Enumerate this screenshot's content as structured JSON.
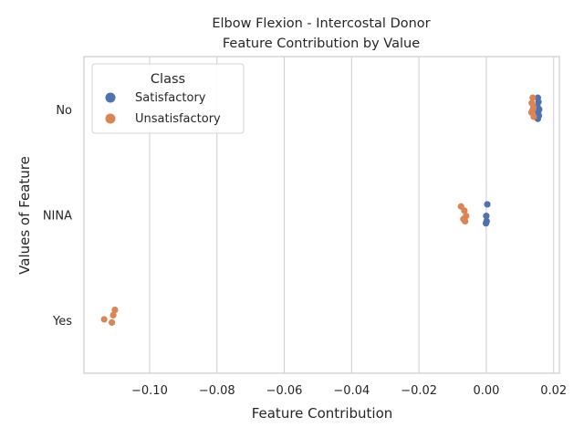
{
  "chart_data": {
    "type": "scatter",
    "title_line1": "Elbow Flexion - Intercostal Donor",
    "title_line2": "Feature Contribution by Value",
    "xlabel": "Feature Contribution",
    "ylabel": "Values of Feature",
    "xlim": [
      -0.1195,
      0.0217
    ],
    "x_ticks": [
      -0.1,
      -0.08,
      -0.06,
      -0.04,
      -0.02,
      0.0,
      0.02
    ],
    "x_tick_labels": [
      "−0.10",
      "−0.08",
      "−0.06",
      "−0.04",
      "−0.02",
      "0.00",
      "0.02"
    ],
    "categories": [
      "No",
      "NINA",
      "Yes"
    ],
    "grid": "vertical",
    "legend": {
      "title": "Class",
      "placement": "top-left",
      "entries": [
        "Satisfactory",
        "Unsatisfactory"
      ]
    },
    "series": [
      {
        "name": "Satisfactory",
        "color": "#4c72b0",
        "points": [
          {
            "category": "No",
            "x": 0.0153,
            "jitter": -0.11
          },
          {
            "category": "No",
            "x": 0.0155,
            "jitter": -0.07
          },
          {
            "category": "No",
            "x": 0.0152,
            "jitter": -0.03
          },
          {
            "category": "No",
            "x": 0.0157,
            "jitter": 0.0
          },
          {
            "category": "No",
            "x": 0.0154,
            "jitter": 0.03
          },
          {
            "category": "No",
            "x": 0.0156,
            "jitter": 0.06
          },
          {
            "category": "No",
            "x": 0.0153,
            "jitter": 0.09
          },
          {
            "category": "NINA",
            "x": 0.0003,
            "jitter": -0.1
          },
          {
            "category": "NINA",
            "x": 0.0,
            "jitter": 0.01
          },
          {
            "category": "NINA",
            "x": 0.0001,
            "jitter": 0.06
          },
          {
            "category": "NINA",
            "x": -0.0001,
            "jitter": 0.08
          }
        ]
      },
      {
        "name": "Unsatisfactory",
        "color": "#dd8452",
        "points": [
          {
            "category": "No",
            "x": 0.0138,
            "jitter": -0.11
          },
          {
            "category": "No",
            "x": 0.0135,
            "jitter": -0.06
          },
          {
            "category": "No",
            "x": 0.014,
            "jitter": -0.02
          },
          {
            "category": "No",
            "x": 0.0137,
            "jitter": 0.01
          },
          {
            "category": "No",
            "x": 0.0134,
            "jitter": 0.03
          },
          {
            "category": "No",
            "x": 0.0141,
            "jitter": 0.07
          },
          {
            "category": "NINA",
            "x": -0.0075,
            "jitter": -0.08
          },
          {
            "category": "NINA",
            "x": -0.0065,
            "jitter": -0.04
          },
          {
            "category": "NINA",
            "x": -0.006,
            "jitter": 0.01
          },
          {
            "category": "NINA",
            "x": -0.0068,
            "jitter": 0.04
          },
          {
            "category": "NINA",
            "x": -0.0063,
            "jitter": 0.06
          },
          {
            "category": "Yes",
            "x": -0.1103,
            "jitter": -0.1
          },
          {
            "category": "Yes",
            "x": -0.1108,
            "jitter": -0.05
          },
          {
            "category": "Yes",
            "x": -0.1135,
            "jitter": -0.01
          },
          {
            "category": "Yes",
            "x": -0.1112,
            "jitter": 0.02
          }
        ]
      }
    ]
  }
}
